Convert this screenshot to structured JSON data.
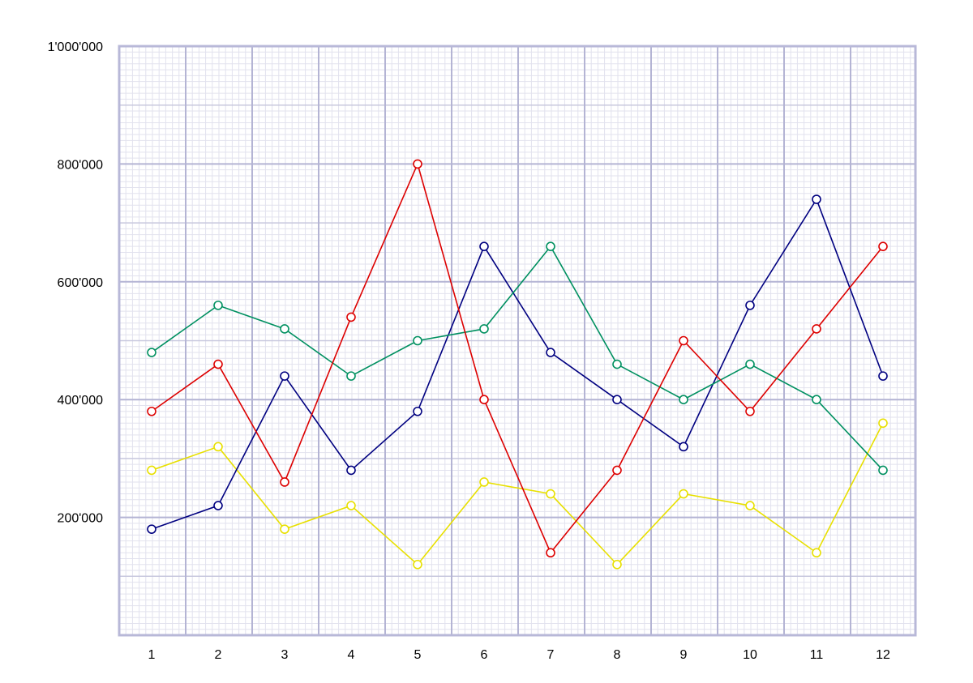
{
  "chart_data": {
    "type": "line",
    "x": [
      1,
      2,
      3,
      4,
      5,
      6,
      7,
      8,
      9,
      10,
      11,
      12
    ],
    "ylim": [
      0,
      1000000
    ],
    "y_ticks": [
      200000,
      400000,
      600000,
      800000,
      1000000
    ],
    "y_tick_labels": [
      "200'000",
      "400'000",
      "600'000",
      "800'000",
      "1'000'000"
    ],
    "x_tick_labels": [
      "1",
      "2",
      "3",
      "4",
      "5",
      "6",
      "7",
      "8",
      "9",
      "10",
      "11",
      "12"
    ],
    "grid": true,
    "series": [
      {
        "color": "#e8e000",
        "values": [
          280000,
          320000,
          180000,
          220000,
          120000,
          260000,
          240000,
          120000,
          240000,
          220000,
          140000,
          360000
        ]
      },
      {
        "color": "#000080",
        "values": [
          180000,
          220000,
          440000,
          280000,
          380000,
          660000,
          480000,
          400000,
          320000,
          560000,
          740000,
          440000
        ]
      },
      {
        "color": "#009060",
        "values": [
          480000,
          560000,
          520000,
          440000,
          500000,
          520000,
          660000,
          460000,
          400000,
          460000,
          400000,
          280000
        ]
      },
      {
        "color": "#dd0000",
        "values": [
          380000,
          460000,
          260000,
          540000,
          800000,
          400000,
          140000,
          280000,
          500000,
          380000,
          520000,
          660000
        ]
      }
    ],
    "grid_colors": {
      "fine": "#e2e2ee",
      "medium": "#c8c8de",
      "major": "#b4b4d4",
      "frame": "#b8b8d8"
    }
  }
}
